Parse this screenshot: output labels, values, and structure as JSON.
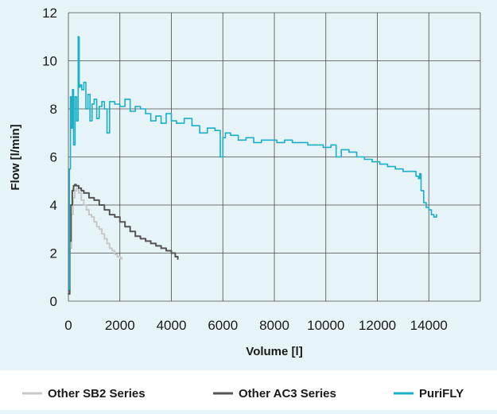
{
  "colors": {
    "background": "#e6f3f7",
    "legend_background": "#ffffff",
    "grid": "#4a4a4a",
    "text": "#1a1a1a"
  },
  "chart_data": {
    "type": "line",
    "title": "",
    "xlabel": "Volume [l]",
    "ylabel": "Flow [l/min]",
    "xlim": [
      0,
      16000
    ],
    "ylim": [
      0,
      12
    ],
    "xticks": [
      0,
      2000,
      4000,
      6000,
      8000,
      10000,
      12000,
      14000
    ],
    "yticks": [
      0,
      2,
      4,
      6,
      8,
      10,
      12
    ],
    "grid": true,
    "legend_position": "bottom",
    "series": [
      {
        "name": "Other SB2 Series",
        "color": "#c8c8c8",
        "x": [
          0,
          60,
          120,
          180,
          250,
          320,
          400,
          500,
          600,
          700,
          800,
          900,
          1000,
          1100,
          1200,
          1300,
          1400,
          1500,
          1600,
          1700,
          1800,
          1900,
          2000,
          2080
        ],
        "y": [
          0.3,
          2.2,
          3.6,
          4.3,
          4.6,
          4.7,
          4.5,
          4.2,
          4.0,
          3.8,
          3.6,
          3.5,
          3.3,
          3.1,
          3.0,
          2.8,
          2.6,
          2.4,
          2.2,
          2.1,
          1.95,
          1.85,
          1.8,
          1.75
        ]
      },
      {
        "name": "Other AC3 Series",
        "color": "#555555",
        "x": [
          0,
          50,
          100,
          150,
          200,
          250,
          300,
          400,
          500,
          600,
          800,
          1000,
          1200,
          1400,
          1600,
          1800,
          2000,
          2200,
          2400,
          2600,
          2800,
          3000,
          3200,
          3400,
          3600,
          3800,
          4000,
          4150,
          4250
        ],
        "y": [
          0.3,
          2.5,
          4.0,
          4.6,
          4.8,
          4.85,
          4.8,
          4.7,
          4.6,
          4.5,
          4.3,
          4.2,
          4.0,
          3.8,
          3.6,
          3.5,
          3.3,
          3.1,
          2.9,
          2.7,
          2.6,
          2.5,
          2.4,
          2.3,
          2.2,
          2.1,
          2.0,
          1.85,
          1.75
        ]
      },
      {
        "name": "PuriFLY",
        "color": "#1ab0c8",
        "x": [
          0,
          40,
          80,
          120,
          160,
          200,
          260,
          320,
          380,
          420,
          460,
          520,
          600,
          680,
          760,
          840,
          920,
          1000,
          1100,
          1200,
          1300,
          1400,
          1500,
          1600,
          1800,
          2000,
          2200,
          2400,
          2600,
          2800,
          3000,
          3200,
          3400,
          3600,
          3800,
          4000,
          4200,
          4500,
          4800,
          5100,
          5400,
          5700,
          5900,
          6000,
          6100,
          6300,
          6600,
          6900,
          7200,
          7500,
          7800,
          8100,
          8400,
          8700,
          9000,
          9300,
          9600,
          9900,
          10200,
          10400,
          10600,
          10900,
          11200,
          11500,
          11800,
          12100,
          12400,
          12700,
          13000,
          13300,
          13500,
          13600,
          13650,
          13700,
          13800,
          13900,
          14000,
          14100,
          14200,
          14300
        ],
        "y": [
          0.5,
          5.5,
          8.5,
          7.2,
          8.8,
          6.5,
          8.5,
          7.5,
          11.0,
          8.9,
          9.0,
          8.8,
          9.1,
          8.0,
          8.6,
          7.5,
          8.2,
          8.4,
          7.6,
          8.1,
          8.3,
          8.0,
          7.0,
          8.3,
          8.2,
          8.1,
          8.4,
          7.9,
          8.1,
          8.0,
          7.8,
          7.5,
          7.7,
          7.4,
          7.8,
          7.5,
          7.4,
          7.6,
          7.3,
          7.0,
          7.2,
          7.1,
          6.0,
          6.8,
          7.0,
          6.9,
          6.7,
          6.8,
          6.6,
          6.7,
          6.7,
          6.6,
          6.7,
          6.6,
          6.6,
          6.5,
          6.5,
          6.4,
          6.5,
          6.0,
          6.3,
          6.2,
          6.0,
          5.9,
          5.8,
          5.7,
          5.6,
          5.5,
          5.4,
          5.4,
          5.2,
          5.1,
          5.3,
          4.6,
          4.1,
          3.9,
          3.8,
          3.6,
          3.5,
          3.6
        ]
      }
    ]
  }
}
